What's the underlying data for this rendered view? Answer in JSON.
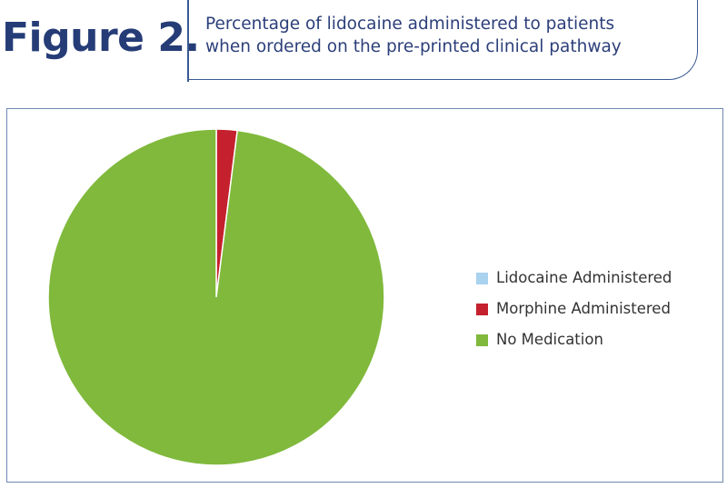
{
  "header": {
    "figure_label": "Figure 2.",
    "subtitle_line1": "Percentage of lidocaine administered to patients",
    "subtitle_line2": "when ordered on the pre-printed clinical pathway"
  },
  "colors": {
    "lidocaine": "#a9d2ef",
    "morphine": "#c4202d",
    "no_medication": "#80b93c",
    "brand_navy": "#253c77"
  },
  "chart_data": {
    "type": "pie",
    "title": "Percentage of lidocaine administered to patients when ordered on the pre-printed clinical pathway",
    "labels": [
      "Lidocaine Administered",
      "Morphine Administered",
      "No Medication"
    ],
    "values": [
      0,
      2,
      98
    ],
    "legend_position": "right"
  },
  "legend": [
    {
      "label": "Lidocaine Administered"
    },
    {
      "label": "Morphine Administered"
    },
    {
      "label": "No Medication"
    }
  ]
}
